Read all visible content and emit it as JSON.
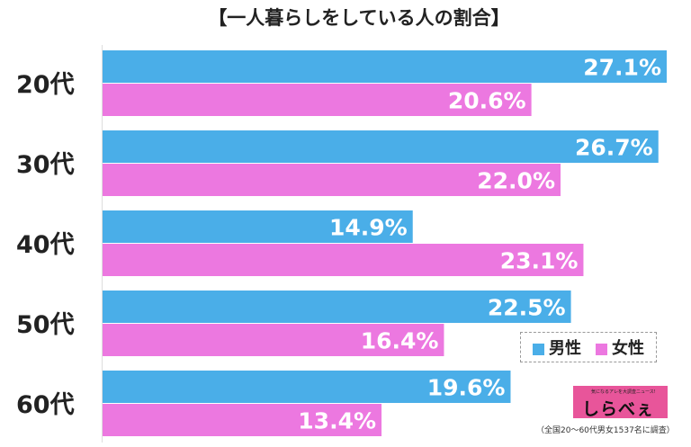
{
  "title": "【一人暮らしをしている人の割合】",
  "chart_data": {
    "type": "bar",
    "orientation": "horizontal",
    "title": "【一人暮らしをしている人の割合】",
    "categories": [
      "20代",
      "30代",
      "40代",
      "50代",
      "60代"
    ],
    "series": [
      {
        "name": "男性",
        "color": "#4aaee8",
        "values": [
          27.1,
          26.7,
          14.9,
          22.5,
          19.6
        ],
        "labels": [
          "27.1%",
          "26.7%",
          "14.9%",
          "22.5%",
          "19.6%"
        ]
      },
      {
        "name": "女性",
        "color": "#ec78e0",
        "values": [
          20.6,
          22.0,
          23.1,
          16.4,
          13.4
        ],
        "labels": [
          "20.6%",
          "22.0%",
          "23.1%",
          "16.4%",
          "13.4%"
        ]
      }
    ],
    "xlim": [
      0,
      27.1
    ],
    "grid": false,
    "legend": "bottom-right"
  },
  "legend": {
    "male": "男性",
    "female": "女性"
  },
  "logo": {
    "tagline": "気になるアレを大調査ニュース!",
    "name": "しらべぇ"
  },
  "note": "（全国20〜60代男女1537名に調査）"
}
